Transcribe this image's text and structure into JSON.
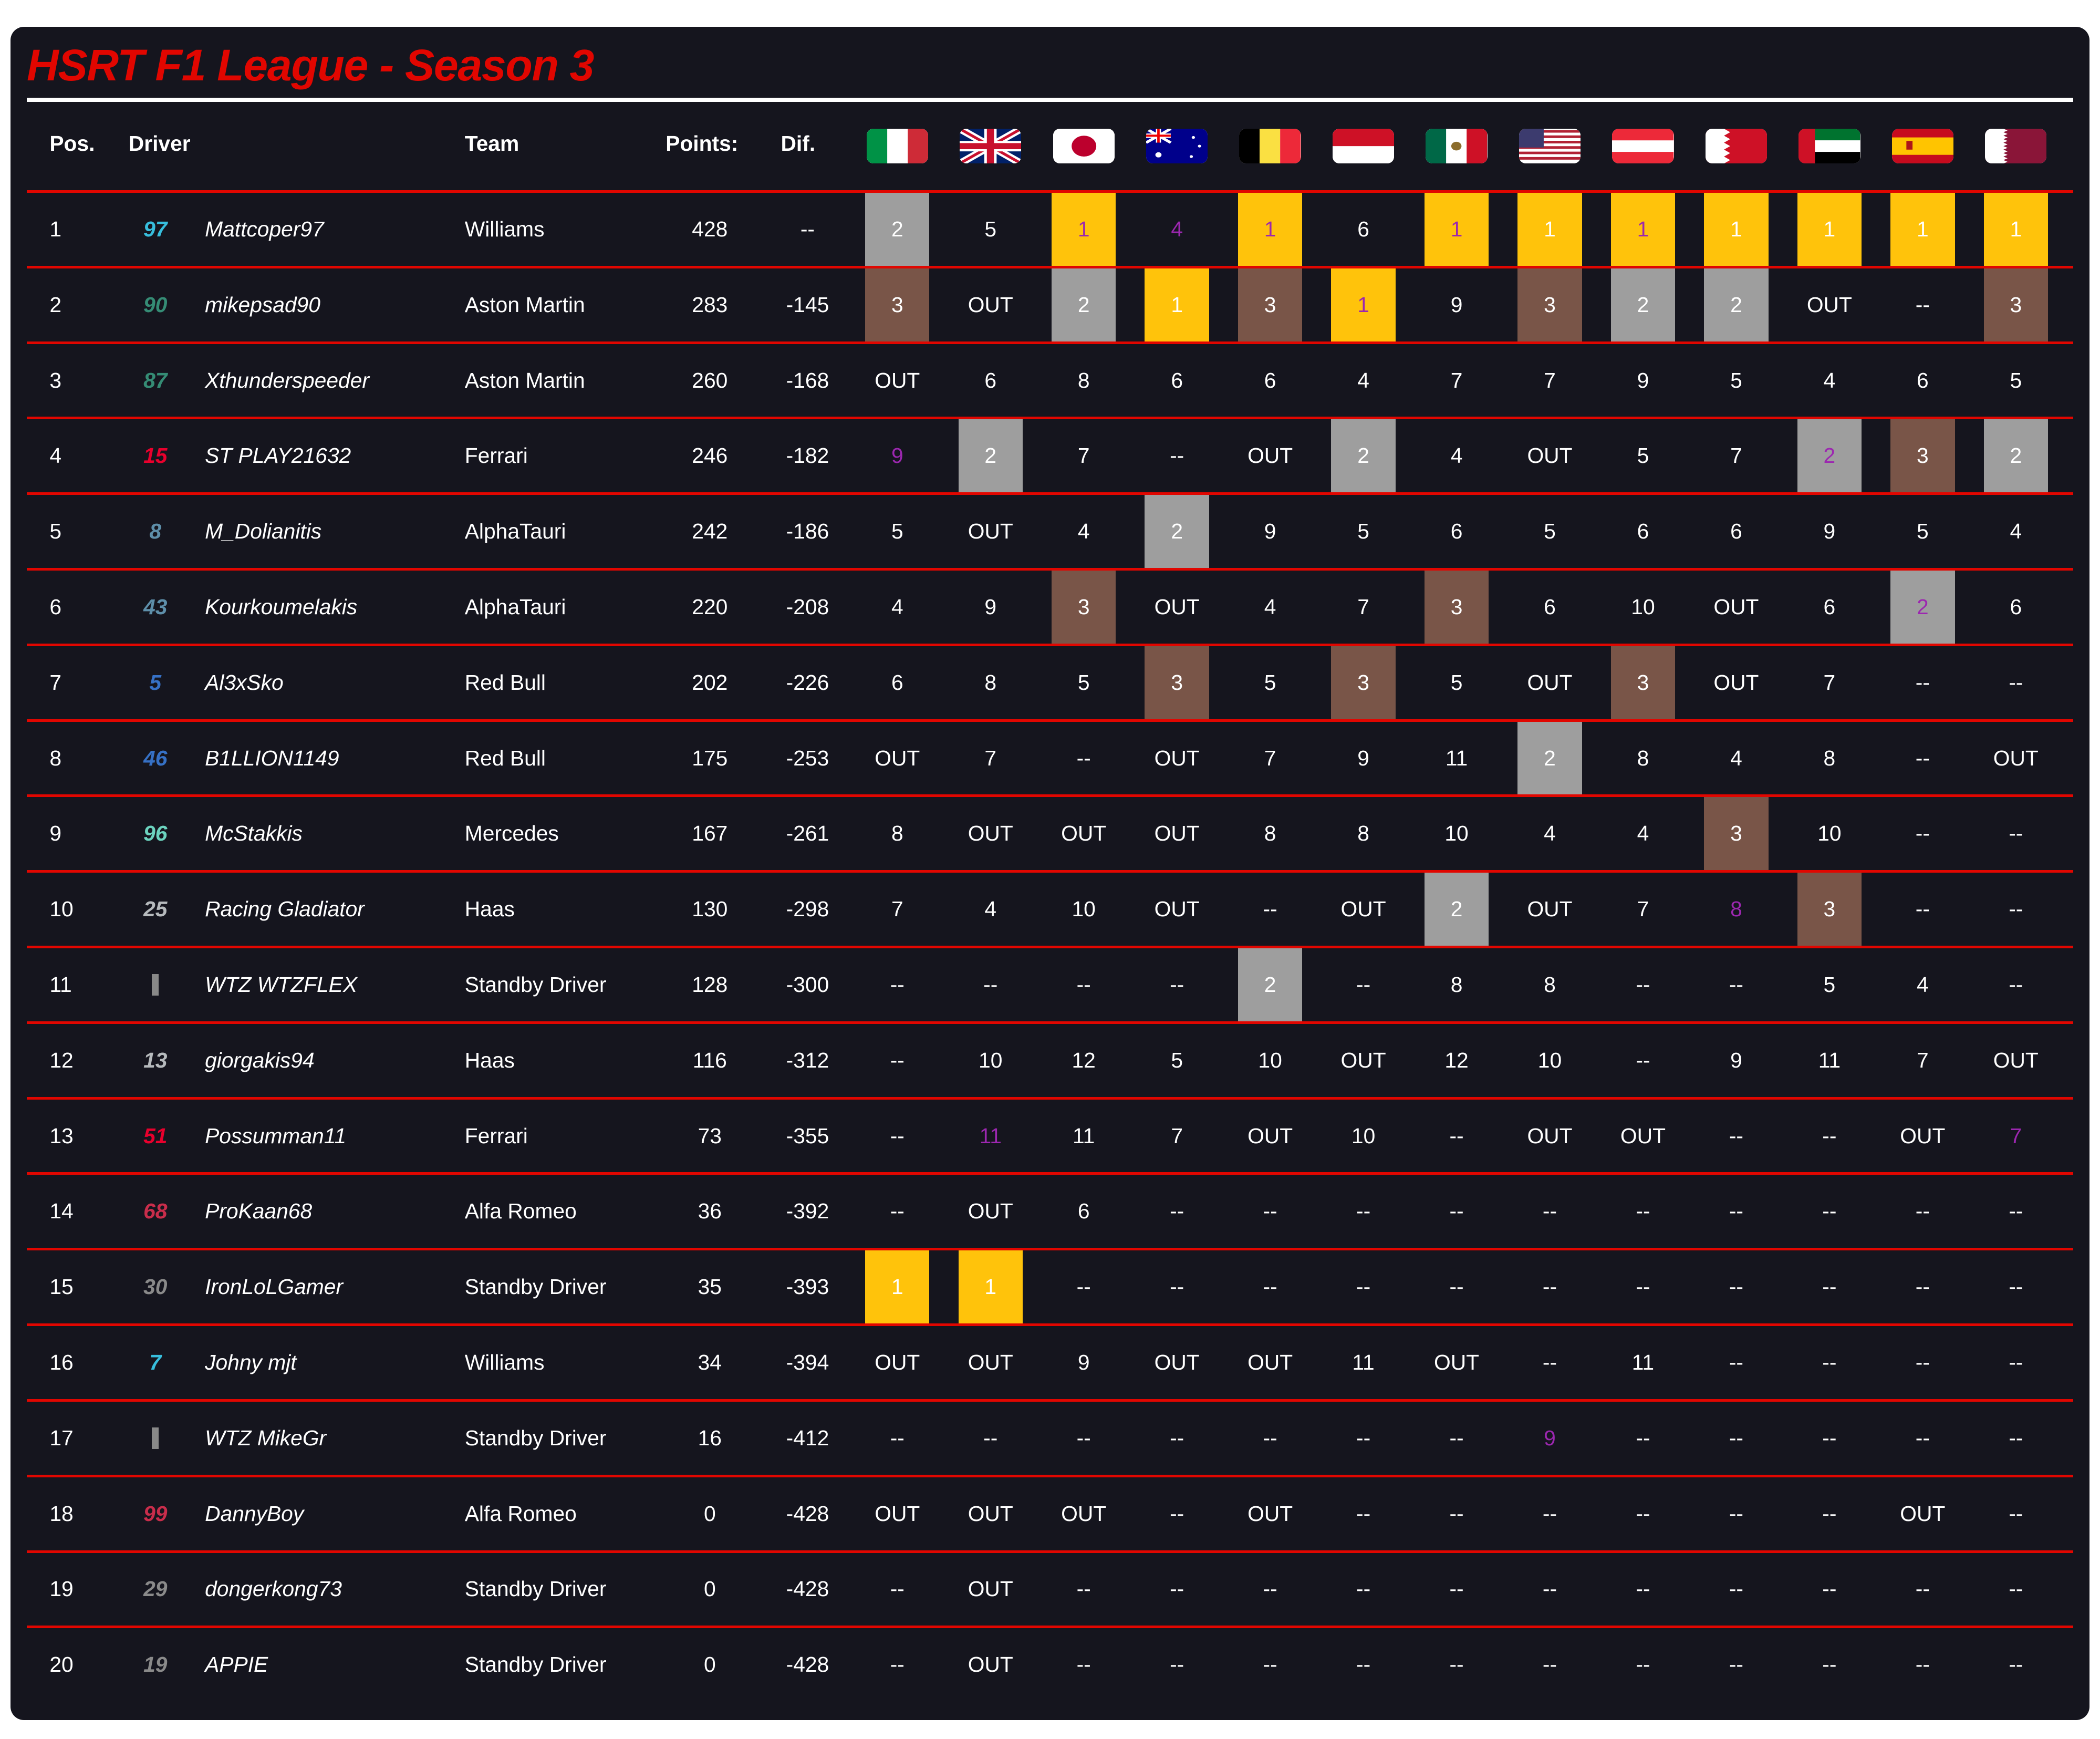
{
  "title": "HSRT F1 League - Season 3",
  "headers": {
    "pos": "Pos.",
    "driver": "Driver",
    "team": "Team",
    "points": "Points:",
    "dif": "Dif."
  },
  "races": [
    {
      "flag": "italy-flag-icon",
      "code": "italy"
    },
    {
      "flag": "uk-flag-icon",
      "code": "uk"
    },
    {
      "flag": "japan-flag-icon",
      "code": "japan"
    },
    {
      "flag": "australia-flag-icon",
      "code": "australia"
    },
    {
      "flag": "belgium-flag-icon",
      "code": "belgium"
    },
    {
      "flag": "monaco-flag-icon",
      "code": "monaco"
    },
    {
      "flag": "mexico-flag-icon",
      "code": "mexico"
    },
    {
      "flag": "usa-flag-icon",
      "code": "usa"
    },
    {
      "flag": "austria-flag-icon",
      "code": "austria"
    },
    {
      "flag": "bahrain-flag-icon",
      "code": "bahrain"
    },
    {
      "flag": "uae-flag-icon",
      "code": "uae"
    },
    {
      "flag": "spain-flag-icon",
      "code": "spain"
    },
    {
      "flag": "qatar-flag-icon",
      "code": "qatar"
    }
  ],
  "colors": {
    "gold": "#ffc30b",
    "silver": "#9e9e9e",
    "bronze": "#795548",
    "fastest_lap": "#9c27b0",
    "divider": "#e10600",
    "background": "#15151e"
  },
  "rows": [
    {
      "pos": "1",
      "num": "97",
      "num_color": "#37bedd",
      "driver": "Mattcoper97",
      "team": "Williams",
      "points": "428",
      "dif": "--",
      "results": [
        "2",
        "5",
        "1",
        "4",
        "1",
        "6",
        "1",
        "1",
        "1",
        "1",
        "1",
        "1",
        "1"
      ],
      "fastest_lap": [
        2,
        3,
        4,
        6,
        8
      ]
    },
    {
      "pos": "2",
      "num": "90",
      "num_color": "#358c75",
      "driver": "mikepsad90",
      "team": "Aston Martin",
      "points": "283",
      "dif": "-145",
      "results": [
        "3",
        "OUT",
        "2",
        "1",
        "3",
        "1",
        "9",
        "3",
        "2",
        "2",
        "OUT",
        "--",
        "3"
      ],
      "fastest_lap": [
        5
      ]
    },
    {
      "pos": "3",
      "num": "87",
      "num_color": "#358c75",
      "driver": "Xthunderspeeder",
      "team": "Aston Martin",
      "points": "260",
      "dif": "-168",
      "results": [
        "OUT",
        "6",
        "8",
        "6",
        "6",
        "4",
        "7",
        "7",
        "9",
        "5",
        "4",
        "6",
        "5"
      ],
      "fastest_lap": []
    },
    {
      "pos": "4",
      "num": "15",
      "num_color": "#e8002d",
      "driver": "ST PLAY21632",
      "team": "Ferrari",
      "points": "246",
      "dif": "-182",
      "results": [
        "9",
        "2",
        "7",
        "--",
        "OUT",
        "2",
        "4",
        "OUT",
        "5",
        "7",
        "2",
        "3",
        "2"
      ],
      "fastest_lap": [
        0,
        10
      ]
    },
    {
      "pos": "5",
      "num": "8",
      "num_color": "#5e8faa",
      "driver": "M_Dolianitis",
      "team": "AlphaTauri",
      "points": "242",
      "dif": "-186",
      "results": [
        "5",
        "OUT",
        "4",
        "2",
        "9",
        "5",
        "6",
        "5",
        "6",
        "6",
        "9",
        "5",
        "4"
      ],
      "fastest_lap": []
    },
    {
      "pos": "6",
      "num": "43",
      "num_color": "#5e8faa",
      "driver": "Kourkoumelakis",
      "team": "AlphaTauri",
      "points": "220",
      "dif": "-208",
      "results": [
        "4",
        "9",
        "3",
        "OUT",
        "4",
        "7",
        "3",
        "6",
        "10",
        "OUT",
        "6",
        "2",
        "6"
      ],
      "fastest_lap": [
        11
      ]
    },
    {
      "pos": "7",
      "num": "5",
      "num_color": "#3671c6",
      "driver": "Al3xSko",
      "team": "Red Bull",
      "points": "202",
      "dif": "-226",
      "results": [
        "6",
        "8",
        "5",
        "3",
        "5",
        "3",
        "5",
        "OUT",
        "3",
        "OUT",
        "7",
        "--",
        "--"
      ],
      "fastest_lap": []
    },
    {
      "pos": "8",
      "num": "46",
      "num_color": "#3671c6",
      "driver": "B1LLION1149",
      "team": "Red Bull",
      "points": "175",
      "dif": "-253",
      "results": [
        "OUT",
        "7",
        "--",
        "OUT",
        "7",
        "9",
        "11",
        "2",
        "8",
        "4",
        "8",
        "--",
        "OUT"
      ],
      "fastest_lap": []
    },
    {
      "pos": "9",
      "num": "96",
      "num_color": "#6cd3bf",
      "driver": "McStakkis",
      "team": "Mercedes",
      "points": "167",
      "dif": "-261",
      "results": [
        "8",
        "OUT",
        "OUT",
        "OUT",
        "8",
        "8",
        "10",
        "4",
        "4",
        "3",
        "10",
        "--",
        "--"
      ],
      "fastest_lap": []
    },
    {
      "pos": "10",
      "num": "25",
      "num_color": "#b6babd",
      "driver": "Racing Gladiator",
      "team": "Haas",
      "points": "130",
      "dif": "-298",
      "results": [
        "7",
        "4",
        "10",
        "OUT",
        "--",
        "OUT",
        "2",
        "OUT",
        "7",
        "8",
        "3",
        "--",
        "--"
      ],
      "fastest_lap": [
        9
      ]
    },
    {
      "pos": "11",
      "num": "",
      "num_color": "#888888",
      "driver": "WTZ WTZFLEX",
      "team": "Standby Driver",
      "points": "128",
      "dif": "-300",
      "results": [
        "--",
        "--",
        "--",
        "--",
        "2",
        "--",
        "8",
        "8",
        "--",
        "--",
        "5",
        "4",
        "--"
      ],
      "fastest_lap": []
    },
    {
      "pos": "12",
      "num": "13",
      "num_color": "#b6babd",
      "driver": "giorgakis94",
      "team": "Haas",
      "points": "116",
      "dif": "-312",
      "results": [
        "--",
        "10",
        "12",
        "5",
        "10",
        "OUT",
        "12",
        "10",
        "--",
        "9",
        "11",
        "7",
        "OUT"
      ],
      "fastest_lap": []
    },
    {
      "pos": "13",
      "num": "51",
      "num_color": "#e8002d",
      "driver": "Possumman11",
      "team": "Ferrari",
      "points": "73",
      "dif": "-355",
      "results": [
        "--",
        "11",
        "11",
        "7",
        "OUT",
        "10",
        "--",
        "OUT",
        "OUT",
        "--",
        "--",
        "OUT",
        "7"
      ],
      "fastest_lap": [
        1,
        12
      ]
    },
    {
      "pos": "14",
      "num": "68",
      "num_color": "#c92d4b",
      "driver": "ProKaan68",
      "team": "Alfa Romeo",
      "points": "36",
      "dif": "-392",
      "results": [
        "--",
        "OUT",
        "6",
        "--",
        "--",
        "--",
        "--",
        "--",
        "--",
        "--",
        "--",
        "--",
        "--"
      ],
      "fastest_lap": []
    },
    {
      "pos": "15",
      "num": "30",
      "num_color": "#8a8a8a",
      "driver": "IronLoLGamer",
      "team": "Standby Driver",
      "points": "35",
      "dif": "-393",
      "results": [
        "1",
        "1",
        "--",
        "--",
        "--",
        "--",
        "--",
        "--",
        "--",
        "--",
        "--",
        "--",
        "--"
      ],
      "fastest_lap": []
    },
    {
      "pos": "16",
      "num": "7",
      "num_color": "#37bedd",
      "driver": "Johny mjt",
      "team": "Williams",
      "points": "34",
      "dif": "-394",
      "results": [
        "OUT",
        "OUT",
        "9",
        "OUT",
        "OUT",
        "11",
        "OUT",
        "--",
        "11",
        "--",
        "--",
        "--",
        "--"
      ],
      "fastest_lap": []
    },
    {
      "pos": "17",
      "num": "",
      "num_color": "#888888",
      "driver": "WTZ MikeGr",
      "team": "Standby Driver",
      "points": "16",
      "dif": "-412",
      "results": [
        "--",
        "--",
        "--",
        "--",
        "--",
        "--",
        "--",
        "9",
        "--",
        "--",
        "--",
        "--",
        "--"
      ],
      "fastest_lap": [
        7
      ]
    },
    {
      "pos": "18",
      "num": "99",
      "num_color": "#c92d4b",
      "driver": "DannyBoy",
      "team": "Alfa Romeo",
      "points": "0",
      "dif": "-428",
      "results": [
        "OUT",
        "OUT",
        "OUT",
        "--",
        "OUT",
        "--",
        "--",
        "--",
        "--",
        "--",
        "--",
        "OUT",
        "--"
      ],
      "fastest_lap": []
    },
    {
      "pos": "19",
      "num": "29",
      "num_color": "#8a8a8a",
      "driver": "dongerkong73",
      "team": "Standby Driver",
      "points": "0",
      "dif": "-428",
      "results": [
        "--",
        "OUT",
        "--",
        "--",
        "--",
        "--",
        "--",
        "--",
        "--",
        "--",
        "--",
        "--",
        "--"
      ],
      "fastest_lap": []
    },
    {
      "pos": "20",
      "num": "19",
      "num_color": "#8a8a8a",
      "driver": "APPIE",
      "team": "Standby Driver",
      "points": "0",
      "dif": "-428",
      "results": [
        "--",
        "OUT",
        "--",
        "--",
        "--",
        "--",
        "--",
        "--",
        "--",
        "--",
        "--",
        "--",
        "--"
      ],
      "fastest_lap": []
    }
  ]
}
